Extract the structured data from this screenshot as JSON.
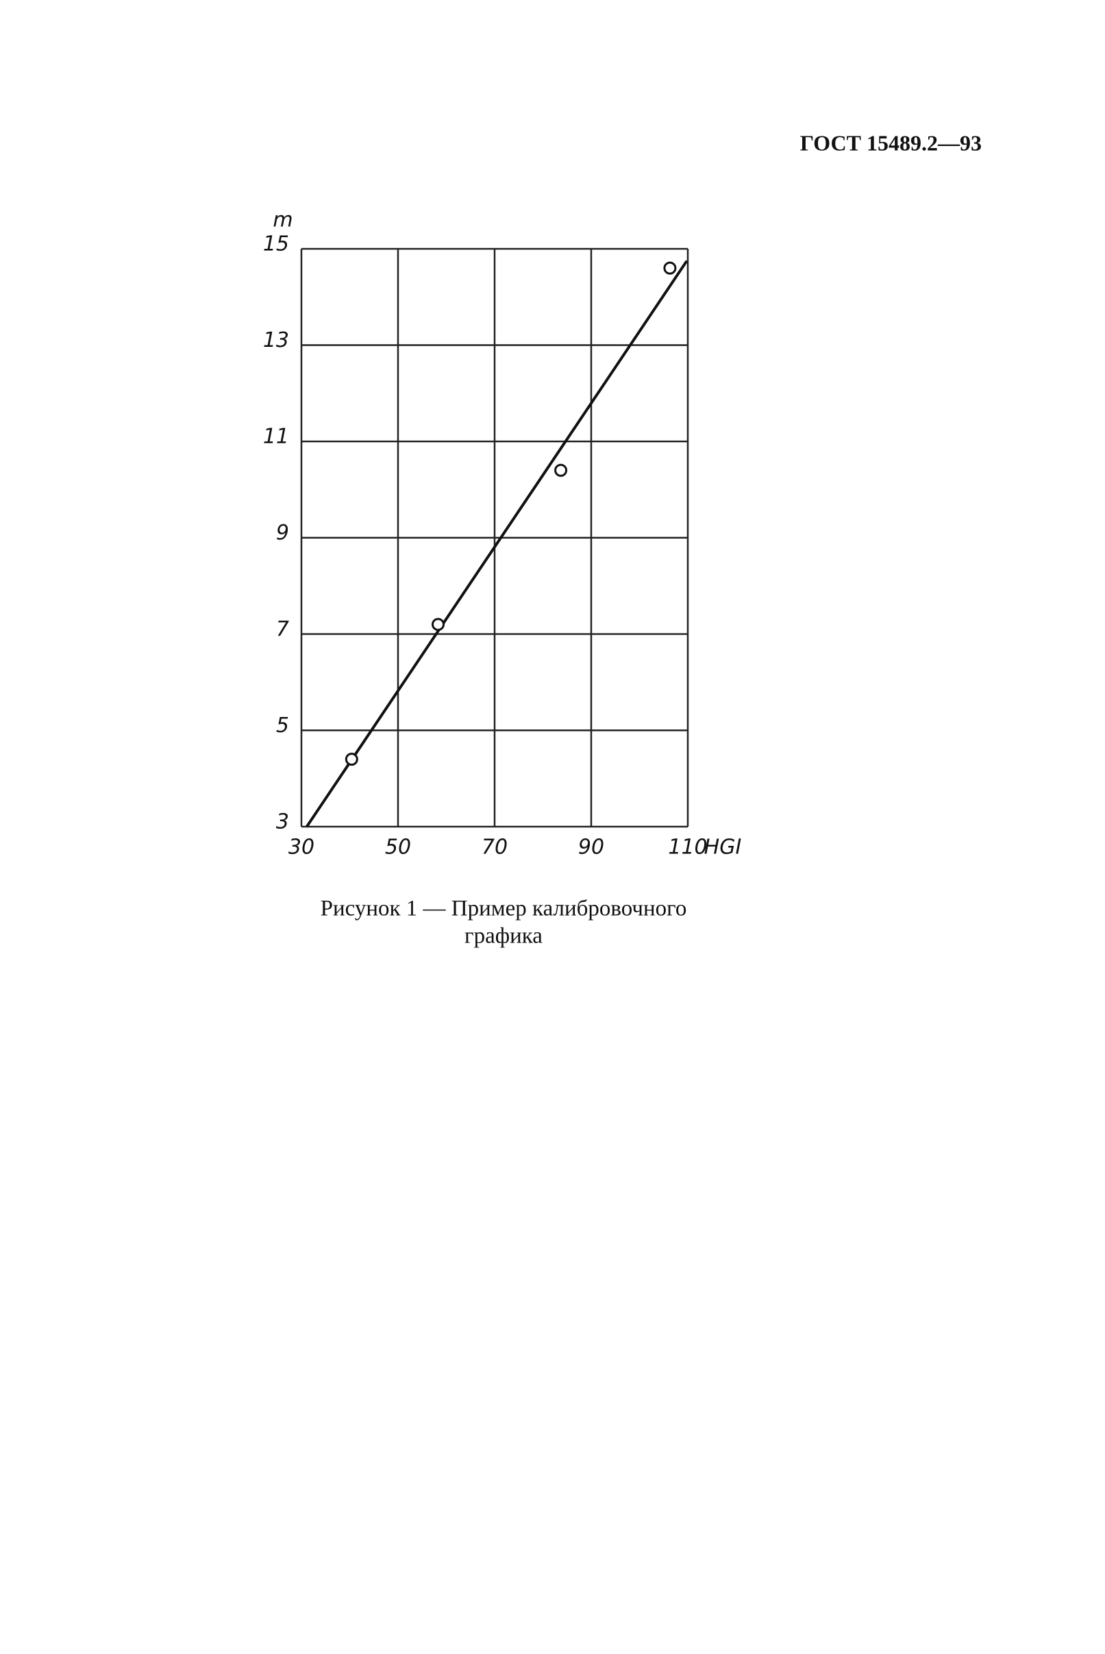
{
  "header": "ГОСТ 15489.2—93",
  "chart_data": {
    "type": "scatter",
    "x_label": "HGI",
    "y_label": "m",
    "xlim": [
      30,
      110
    ],
    "ylim": [
      3,
      15
    ],
    "xticks": [
      30,
      50,
      70,
      90,
      110
    ],
    "yticks": [
      3,
      5,
      7,
      9,
      11,
      13,
      15
    ],
    "grid": true,
    "color": "#111111",
    "x": [
      40.4,
      58.3,
      83.7,
      106.3
    ],
    "values": [
      4.4,
      7.2,
      10.4,
      14.6
    ],
    "fit_line": {
      "x": [
        31.1,
        109.8
      ],
      "values": [
        3,
        14.75
      ]
    }
  },
  "caption": [
    "Рисунок 1 — Пример калибровочного",
    "графика"
  ]
}
